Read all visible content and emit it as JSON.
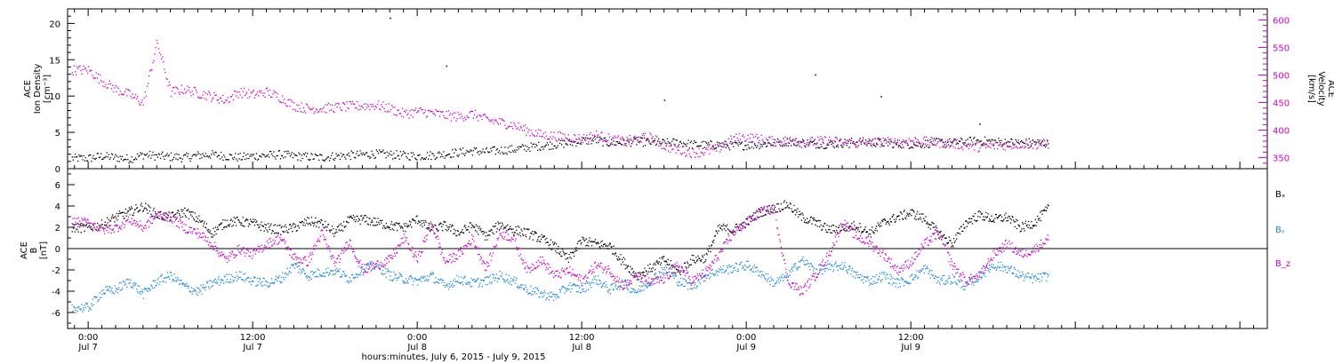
{
  "chart_data": [
    {
      "type": "scatter",
      "panel": "top",
      "ylabel_left": [
        "ACE",
        "Ion Density",
        "[cm⁻³]"
      ],
      "ylabel_right": [
        "ACE",
        "Velocity",
        "[km/s]"
      ],
      "ylim_left": [
        0,
        22
      ],
      "ylim_right": [
        330,
        620
      ],
      "yticks_left": [
        "0",
        "5",
        "10",
        "15",
        "20"
      ],
      "yticks_right": [
        "350",
        "400",
        "450",
        "500",
        "550",
        "600"
      ],
      "series": [
        {
          "axis": "left",
          "color": "#000000",
          "values_by_hour": [
            1.5,
            1.8,
            1.6,
            1.4,
            2.0,
            1.8,
            1.7,
            1.6,
            1.9,
            2.0,
            1.8,
            1.6,
            1.8,
            1.9,
            2.0,
            1.8,
            1.7,
            1.6,
            1.8,
            1.9,
            2.0,
            2.1,
            2.0,
            1.9,
            1.8,
            1.9,
            2.1,
            2.3,
            2.5,
            2.4,
            2.6,
            2.7,
            3.0,
            3.2,
            3.4,
            3.6,
            3.9,
            4.0,
            3.6,
            3.7,
            3.8,
            3.7,
            3.6,
            3.7,
            3.4,
            3.3,
            3.4,
            3.2,
            3.3,
            3.4,
            3.6,
            3.8,
            3.7,
            3.5,
            3.4,
            3.6,
            3.8,
            3.7,
            3.6,
            3.5,
            3.4,
            3.5,
            3.7,
            3.6,
            3.8,
            3.9,
            3.8,
            3.7,
            3.6,
            3.7,
            3.5
          ]
        },
        {
          "axis": "right",
          "color": "#cc00cc",
          "values_by_hour": [
            510,
            490,
            475,
            465,
            450,
            560,
            470,
            475,
            468,
            462,
            455,
            470,
            465,
            470,
            460,
            445,
            440,
            440,
            442,
            444,
            445,
            446,
            440,
            430,
            435,
            432,
            428,
            425,
            430,
            420,
            415,
            410,
            400,
            392,
            390,
            388,
            385,
            392,
            385,
            380,
            385,
            388,
            372,
            365,
            360,
            362,
            368,
            385,
            388,
            384,
            380,
            382,
            378,
            380,
            382,
            378,
            376,
            378,
            380,
            378,
            382,
            380,
            378,
            376,
            374,
            370,
            372,
            374,
            376,
            375,
            376
          ]
        }
      ],
      "outliers": [
        {
          "hour": 22.0,
          "y": 20.8
        },
        {
          "hour": 26.1,
          "y": 14.2
        },
        {
          "hour": 53.0,
          "y": 13.0
        },
        {
          "hour": 42.0,
          "y": 9.5
        },
        {
          "hour": 57.8,
          "y": 10.0
        },
        {
          "hour": 65.0,
          "y": 6.2
        }
      ]
    },
    {
      "type": "scatter",
      "panel": "bottom",
      "ylabel_left": [
        "ACE",
        "B",
        "[nT]"
      ],
      "ylim": [
        -7.5,
        7.5
      ],
      "yticks": [
        "-6",
        "-4",
        "-2",
        "0",
        "2",
        "4",
        "6"
      ],
      "legend": [
        {
          "label": "Bₓ",
          "color": "#000000"
        },
        {
          "label": "Bᵧ",
          "color": "#1a88dd"
        },
        {
          "label": "B_z",
          "color": "#cc00cc"
        }
      ],
      "series": [
        {
          "name": "Bx",
          "color": "#000000",
          "values_by_hour": [
            2.0,
            2.3,
            3.0,
            3.5,
            4.0,
            3.2,
            3.0,
            3.5,
            2.8,
            1.5,
            2.5,
            2.6,
            2.4,
            2.0,
            1.8,
            2.0,
            2.6,
            2.4,
            1.5,
            2.7,
            2.8,
            2.5,
            2.2,
            2.0,
            2.8,
            1.8,
            2.2,
            1.5,
            2.2,
            1.2,
            2.3,
            1.8,
            1.5,
            1.0,
            0.2,
            -1.0,
            0.8,
            0.5,
            0.3,
            -1.2,
            -2.5,
            -1.8,
            -1.0,
            -2.2,
            -1.0,
            -0.8,
            2.0,
            1.8,
            2.5,
            3.5,
            3.8,
            4.2,
            3.0,
            2.5,
            1.8,
            2.0,
            2.2,
            1.5,
            2.5,
            3.0,
            3.4,
            2.8,
            1.5,
            0.5,
            2.5,
            3.2,
            2.8,
            3.0,
            2.0,
            2.5,
            3.8
          ]
        },
        {
          "name": "By",
          "color": "#1a88dd",
          "values_by_hour": [
            -5.5,
            -4.0,
            -3.8,
            -3.0,
            -4.2,
            -3.0,
            -2.5,
            -3.5,
            -4.0,
            -3.2,
            -2.8,
            -2.5,
            -3.0,
            -3.2,
            -2.8,
            -1.5,
            -2.5,
            -2.2,
            -2.0,
            -2.8,
            -1.8,
            -1.5,
            -2.5,
            -2.8,
            -3.0,
            -2.5,
            -3.5,
            -2.8,
            -3.2,
            -3.0,
            -2.5,
            -3.0,
            -3.8,
            -4.2,
            -4.5,
            -3.5,
            -3.8,
            -2.8,
            -3.8,
            -3.2,
            -4.0,
            -3.0,
            -1.8,
            -3.0,
            -3.5,
            -2.5,
            -2.0,
            -1.8,
            -1.5,
            -2.2,
            -3.2,
            -2.5,
            -1.0,
            -2.0,
            -1.8,
            -1.5,
            -2.5,
            -3.0,
            -2.5,
            -3.2,
            -2.8,
            -1.8,
            -3.0,
            -2.8,
            -3.5,
            -2.5,
            -1.5,
            -1.8,
            -2.5,
            -2.8,
            -2.5
          ]
        },
        {
          "name": "Bz",
          "color": "#cc00cc",
          "values_by_hour": [
            2.5,
            1.8,
            2.0,
            2.8,
            2.0,
            3.2,
            3.0,
            2.0,
            1.5,
            0.5,
            -1.0,
            0.0,
            -0.5,
            0.5,
            1.0,
            -0.8,
            -1.2,
            1.5,
            -1.5,
            0.8,
            -2.0,
            -1.5,
            -1.0,
            1.0,
            -1.0,
            2.5,
            -1.2,
            -0.5,
            1.0,
            -1.8,
            1.5,
            1.0,
            -2.0,
            -1.0,
            -2.5,
            -2.0,
            -3.0,
            -1.5,
            -2.0,
            -3.5,
            -2.5,
            -3.2,
            -2.8,
            -1.5,
            -3.0,
            -2.2,
            -0.5,
            1.5,
            2.5,
            3.5,
            3.8,
            -3.0,
            -4.0,
            -2.5,
            -0.5,
            2.5,
            1.2,
            0.5,
            -0.5,
            -2.0,
            -1.2,
            0.5,
            1.5,
            -1.5,
            -3.0,
            -2.5,
            -0.5,
            0.5,
            -0.5,
            0.0,
            1.0
          ]
        }
      ]
    }
  ],
  "x_axis": {
    "range_hours": [
      -1.5,
      86
    ],
    "major_ticks": [
      {
        "hour": 0,
        "time": "0:00",
        "day": "Jul 7"
      },
      {
        "hour": 12,
        "time": "12:00",
        "day": "Jul 7"
      },
      {
        "hour": 24,
        "time": "0:00",
        "day": "Jul 8"
      },
      {
        "hour": 36,
        "time": "12:00",
        "day": "Jul 8"
      },
      {
        "hour": 48,
        "time": "0:00",
        "day": "Jul 9"
      },
      {
        "hour": 60,
        "time": "12:00",
        "day": "Jul 9"
      }
    ],
    "xlabel": "hours:minutes,  July  6, 2015 - July  9, 2015"
  }
}
